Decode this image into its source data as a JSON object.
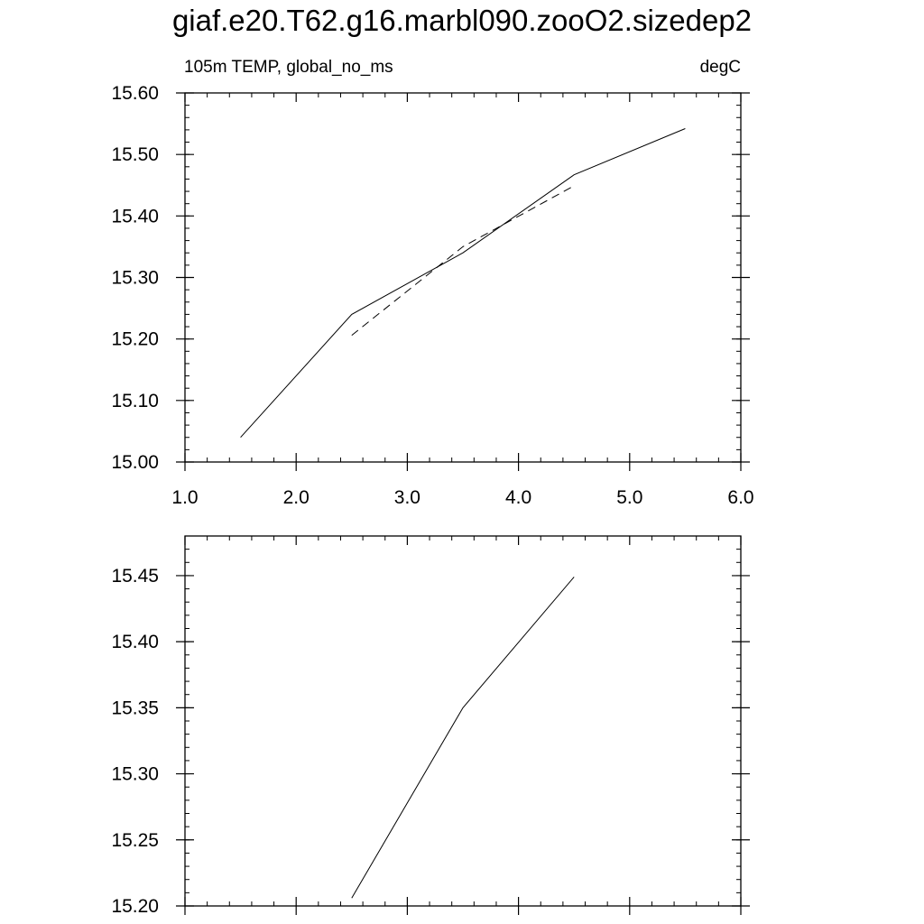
{
  "title": "giaf.e20.T62.g16.marbl090.zooO2.sizedep2",
  "chart_data": [
    {
      "type": "line",
      "subtitle_left": "105m TEMP, global_no_ms",
      "subtitle_right": "degC",
      "xlim": [
        1.0,
        6.0
      ],
      "ylim": [
        15.0,
        15.6
      ],
      "x_ticks": [
        1.0,
        2.0,
        3.0,
        4.0,
        5.0,
        6.0
      ],
      "x_tick_labels": [
        "1.0",
        "2.0",
        "3.0",
        "4.0",
        "5.0",
        "6.0"
      ],
      "y_ticks": [
        15.0,
        15.1,
        15.2,
        15.3,
        15.4,
        15.5,
        15.6
      ],
      "y_tick_labels": [
        "15.00",
        "15.10",
        "15.20",
        "15.30",
        "15.40",
        "15.50",
        "15.60"
      ],
      "grid": false,
      "series": [
        {
          "style": "solid",
          "color": "#000000",
          "x": [
            1.5,
            2.5,
            3.5,
            4.5,
            5.5
          ],
          "y": [
            15.04,
            15.24,
            15.34,
            15.467,
            15.542
          ]
        },
        {
          "style": "dashed",
          "color": "#000000",
          "x": [
            2.5,
            3.5,
            4.5
          ],
          "y": [
            15.206,
            15.35,
            15.449
          ]
        }
      ]
    },
    {
      "type": "line",
      "xlim": [
        1.0,
        6.0
      ],
      "ylim": [
        15.2,
        15.48
      ],
      "x_ticks": [
        1.0,
        2.0,
        3.0,
        4.0,
        5.0,
        6.0
      ],
      "y_ticks": [
        15.2,
        15.25,
        15.3,
        15.35,
        15.4,
        15.45
      ],
      "y_tick_labels": [
        "15.20",
        "15.25",
        "15.30",
        "15.35",
        "15.40",
        "15.45"
      ],
      "grid": false,
      "series": [
        {
          "style": "solid",
          "color": "#000000",
          "x": [
            2.5,
            3.5,
            4.5
          ],
          "y": [
            15.206,
            15.35,
            15.449
          ]
        }
      ]
    }
  ]
}
